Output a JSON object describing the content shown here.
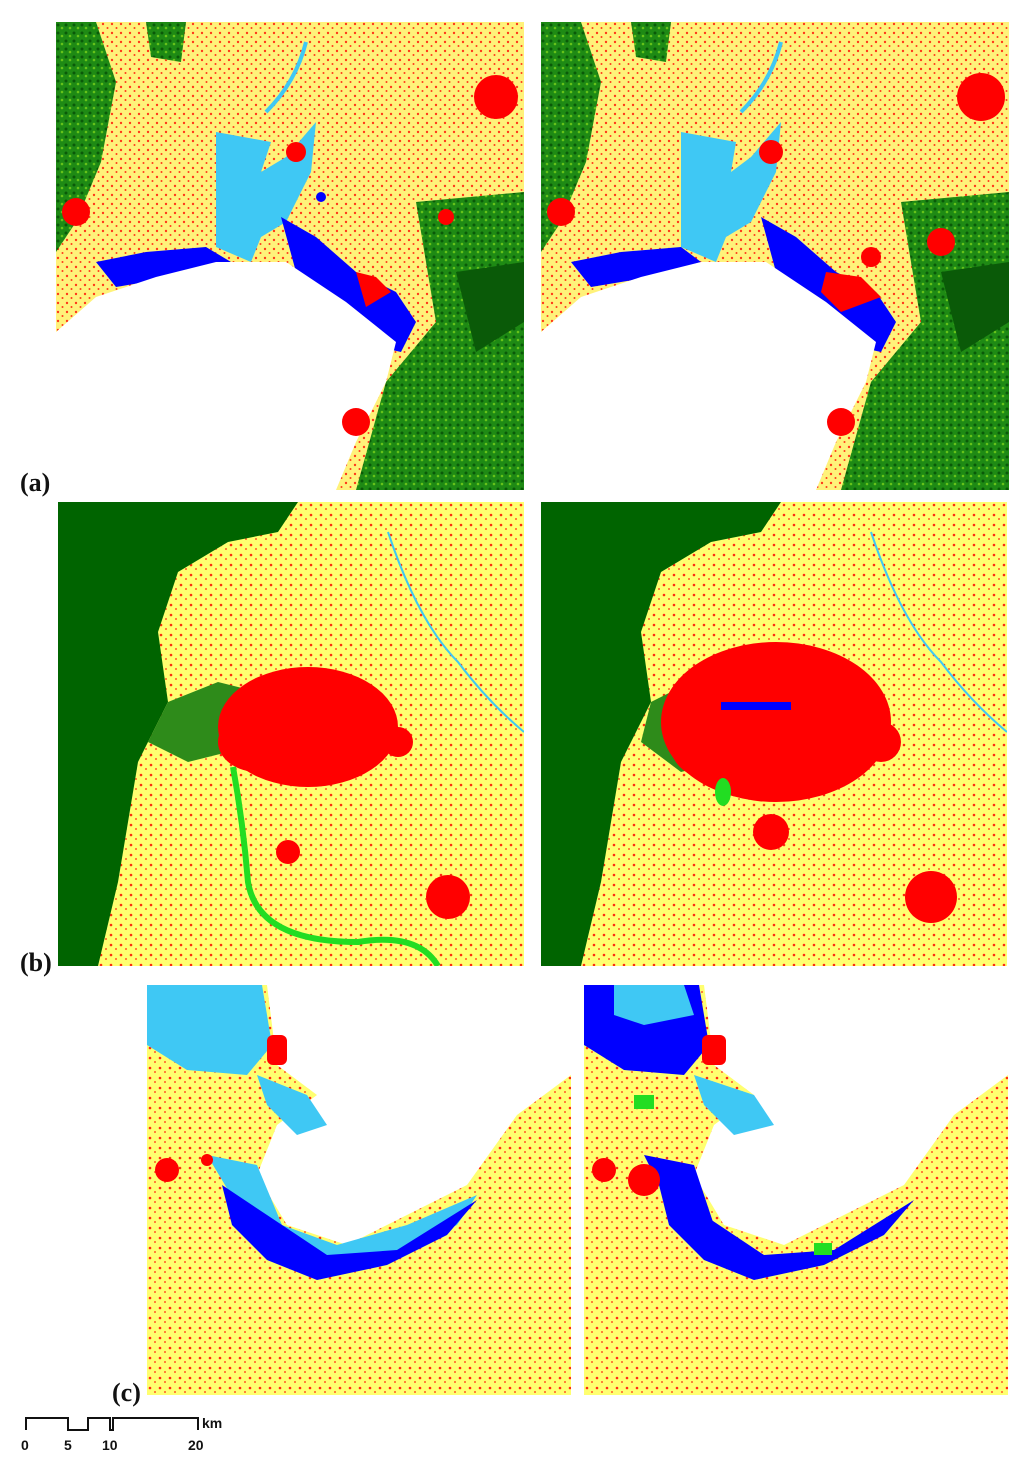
{
  "panels": [
    {
      "label": "(a)"
    },
    {
      "label": "(b)"
    },
    {
      "label": "(c)"
    }
  ],
  "scale_bar": {
    "unit": "km",
    "ticks": [
      "0",
      "5",
      "10",
      "20"
    ]
  },
  "legend_colors": {
    "cropland": "#ffff70",
    "built_up": "#ff0000",
    "forest": "#006400",
    "grassland": "#22dd22",
    "water_bright": "#0000ff",
    "water_light": "#3fc8f4"
  }
}
